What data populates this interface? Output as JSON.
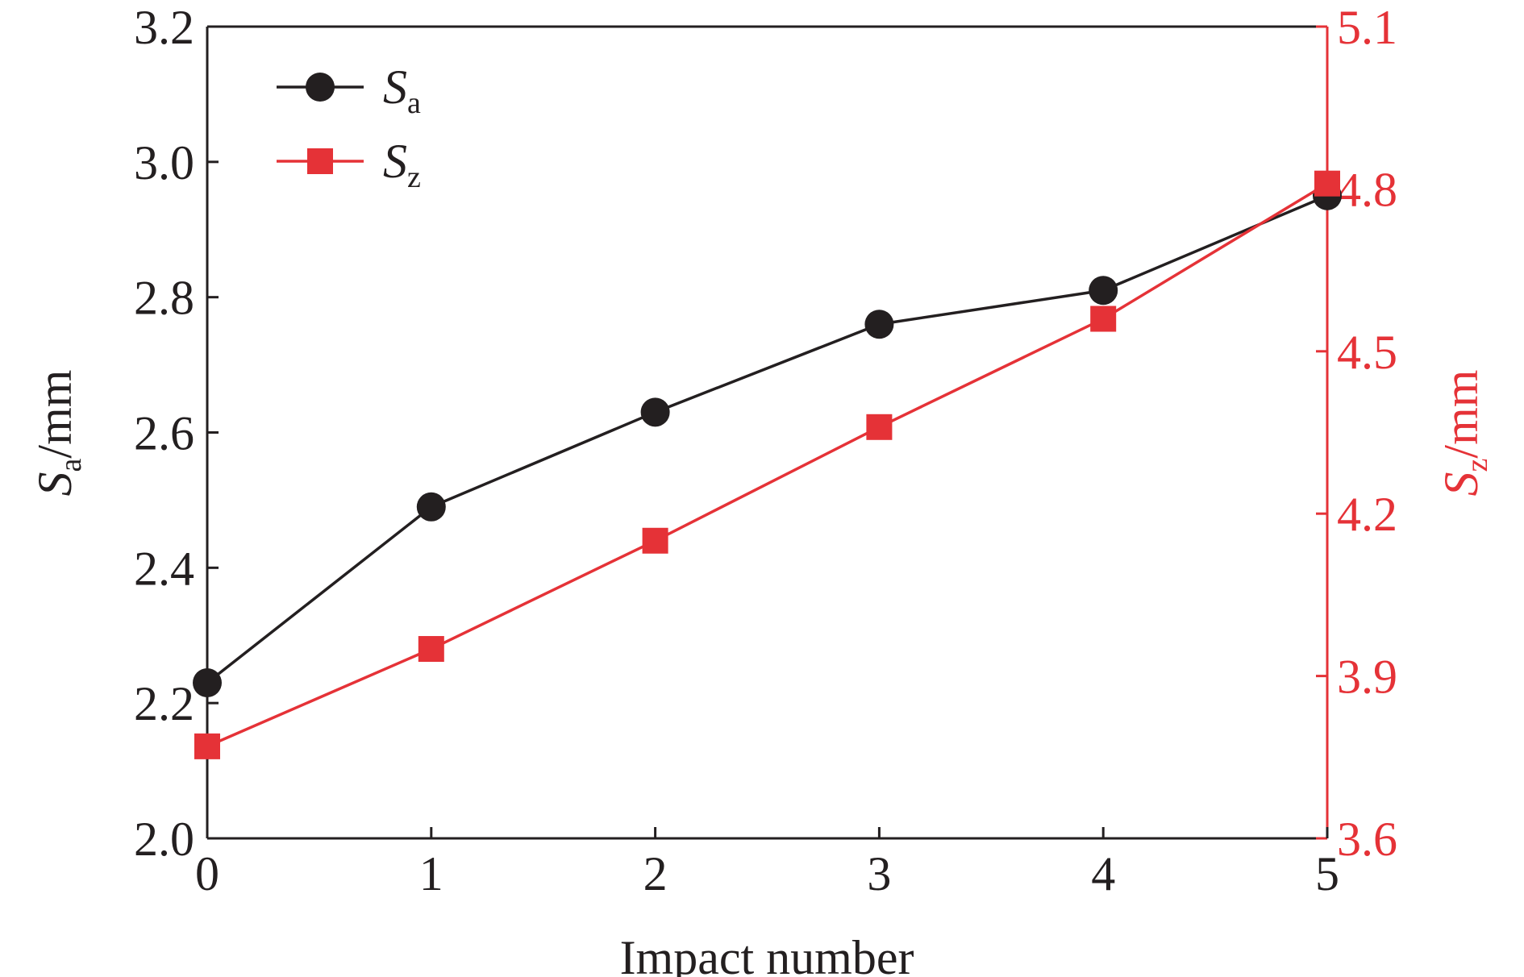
{
  "chart_data": {
    "type": "line",
    "xlabel": "Impact number",
    "ylabel": {
      "symbol": "S",
      "subscript": "a",
      "unit": "/mm"
    },
    "y2label": {
      "symbol": "S",
      "subscript": "z",
      "unit": "/mm"
    },
    "x": [
      0,
      1,
      2,
      3,
      4,
      5
    ],
    "xlim": [
      0,
      5
    ],
    "x_ticks": [
      "0",
      "1",
      "2",
      "3",
      "4",
      "5"
    ],
    "ylim": [
      2.0,
      3.2
    ],
    "y_ticks": [
      "2.0",
      "2.2",
      "2.4",
      "2.6",
      "2.8",
      "3.0",
      "3.2"
    ],
    "y2lim": [
      3.6,
      5.1
    ],
    "y2_ticks": [
      "3.6",
      "3.9",
      "4.2",
      "4.5",
      "4.8",
      "5.1"
    ],
    "grid": false,
    "legend_position": "top-left",
    "series": [
      {
        "name": "Sa",
        "symbol": "S",
        "subscript": "a",
        "axis": "left",
        "marker": "circle",
        "color": "#231f20",
        "values": [
          2.23,
          2.49,
          2.63,
          2.76,
          2.81,
          2.95
        ]
      },
      {
        "name": "Sz",
        "symbol": "S",
        "subscript": "z",
        "axis": "right",
        "marker": "square",
        "color": "#e53237",
        "values": [
          3.77,
          3.95,
          4.15,
          4.36,
          4.56,
          4.81
        ]
      }
    ],
    "colors": {
      "left_axis": "#231f20",
      "right_axis": "#e53237"
    }
  }
}
